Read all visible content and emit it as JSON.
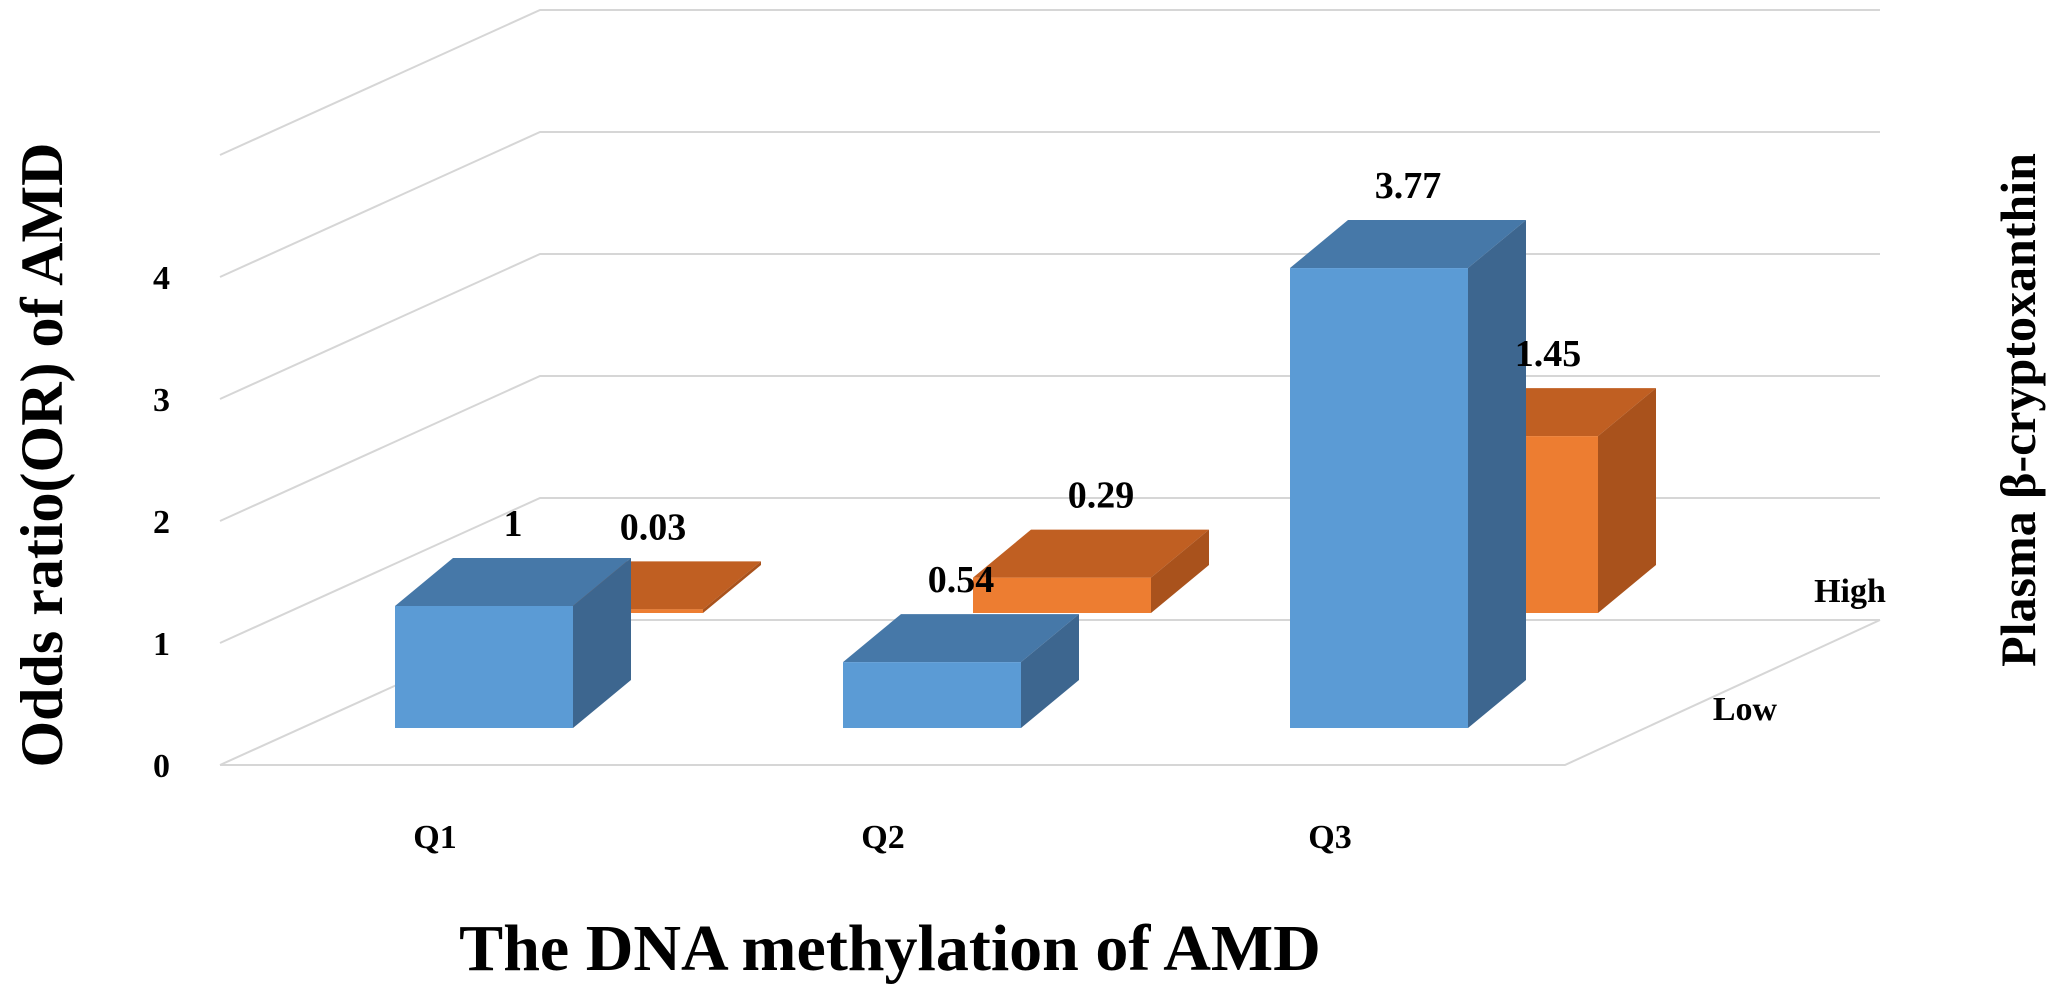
{
  "chart_data": {
    "type": "bar",
    "subtype": "3d-clustered",
    "categories": [
      "Q1",
      "Q2",
      "Q3"
    ],
    "series": [
      {
        "name": "Low",
        "color": "#5b9bd5",
        "values": [
          1,
          0.54,
          3.77
        ],
        "labels": [
          "1",
          "0.54",
          "3.77"
        ]
      },
      {
        "name": "High",
        "color": "#ed7d31",
        "values": [
          0.03,
          0.29,
          1.45
        ],
        "labels": [
          "0.03",
          "0.29",
          "1.45"
        ]
      }
    ],
    "yticks": [
      "0",
      "1",
      "2",
      "3",
      "4"
    ],
    "ylim": [
      0,
      5
    ],
    "ylabel": "Odds ratio(OR) of AMD",
    "xlabel": "The DNA methylation of AMD",
    "zlabel": "Plasma β-cryptoxanthin",
    "gridlines": true
  }
}
